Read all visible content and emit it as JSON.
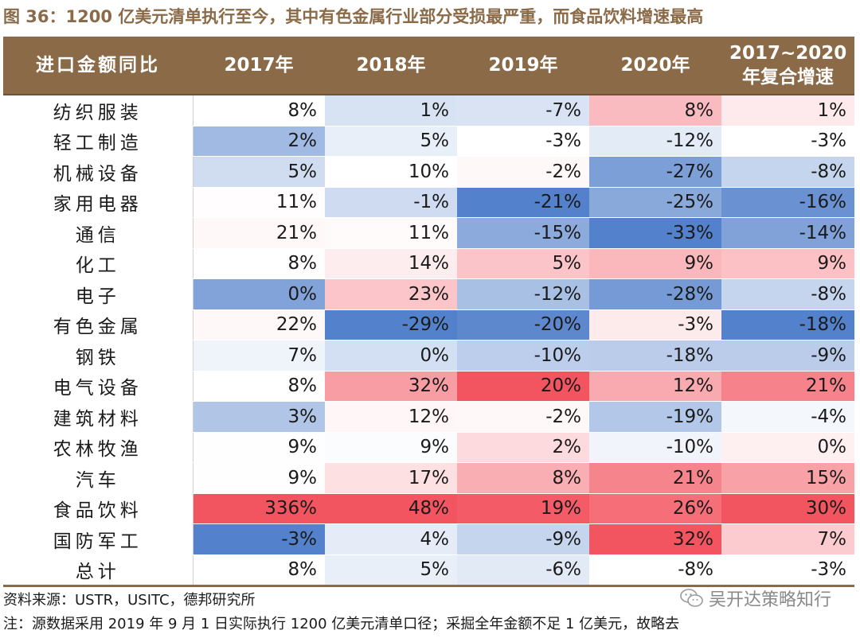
{
  "title": "图 36：1200 亿美元清单执行至今，其中有色金属行业部分受损最严重，而食品饮料增速最高",
  "chart_data": {
    "type": "table",
    "row_header": "进口金额同比",
    "columns": [
      "2017年",
      "2018年",
      "2019年",
      "2020年",
      "2017~2020年复合增速"
    ],
    "rows": [
      {
        "name": "纺织服装",
        "values": [
          "8%",
          "1%",
          "-7%",
          "8%",
          "1%"
        ]
      },
      {
        "name": "轻工制造",
        "values": [
          "2%",
          "5%",
          "-3%",
          "-12%",
          "-3%"
        ]
      },
      {
        "name": "机械设备",
        "values": [
          "5%",
          "10%",
          "-2%",
          "-27%",
          "-8%"
        ]
      },
      {
        "name": "家用电器",
        "values": [
          "11%",
          "-1%",
          "-21%",
          "-25%",
          "-16%"
        ]
      },
      {
        "name": "通信",
        "values": [
          "21%",
          "11%",
          "-15%",
          "-33%",
          "-14%"
        ]
      },
      {
        "name": "化工",
        "values": [
          "8%",
          "14%",
          "5%",
          "9%",
          "9%"
        ]
      },
      {
        "name": "电子",
        "values": [
          "0%",
          "23%",
          "-12%",
          "-28%",
          "-8%"
        ]
      },
      {
        "name": "有色金属",
        "values": [
          "22%",
          "-29%",
          "-20%",
          "-3%",
          "-18%"
        ]
      },
      {
        "name": "钢铁",
        "values": [
          "7%",
          "0%",
          "-10%",
          "-18%",
          "-9%"
        ]
      },
      {
        "name": "电气设备",
        "values": [
          "8%",
          "32%",
          "20%",
          "12%",
          "21%"
        ]
      },
      {
        "name": "建筑材料",
        "values": [
          "3%",
          "12%",
          "-2%",
          "-19%",
          "-4%"
        ]
      },
      {
        "name": "农林牧渔",
        "values": [
          "9%",
          "9%",
          "2%",
          "-10%",
          "0%"
        ]
      },
      {
        "name": "汽车",
        "values": [
          "9%",
          "17%",
          "8%",
          "21%",
          "15%"
        ]
      },
      {
        "name": "食品饮料",
        "values": [
          "336%",
          "48%",
          "19%",
          "26%",
          "30%"
        ]
      },
      {
        "name": "国防军工",
        "values": [
          "-3%",
          "4%",
          "-9%",
          "32%",
          "7%"
        ]
      },
      {
        "name": "总计",
        "values": [
          "8%",
          "5%",
          "-6%",
          "-8%",
          "-3%"
        ]
      }
    ]
  },
  "footer": {
    "source": "资料来源：USTR，USITC，德邦研究所",
    "note": "注：源数据采用 2019 年 9 月 1 日实际执行 1200 亿美元清单口径；采掘全年金额不足 1 亿美元，故略去",
    "watermark": "吴开达策略知行",
    "watermark_icon": "wechat-icon"
  },
  "colors": {
    "header_bg": "#8B6A48",
    "title_color": "#8B6A48",
    "negative": "#4A7AC8",
    "positive": "#F24C58",
    "neutral": "#FFFFFF"
  }
}
